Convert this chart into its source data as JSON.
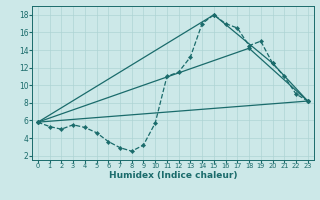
{
  "xlabel": "Humidex (Indice chaleur)",
  "bg_color": "#cce8e8",
  "line_color": "#1a6b6b",
  "xlim": [
    -0.5,
    23.5
  ],
  "ylim": [
    1.5,
    19
  ],
  "xticks": [
    0,
    1,
    2,
    3,
    4,
    5,
    6,
    7,
    8,
    9,
    10,
    11,
    12,
    13,
    14,
    15,
    16,
    17,
    18,
    19,
    20,
    21,
    22,
    23
  ],
  "yticks": [
    2,
    4,
    6,
    8,
    10,
    12,
    14,
    16,
    18
  ],
  "curve_dashed": {
    "x": [
      0,
      1,
      2,
      3,
      4,
      5,
      6,
      7,
      8,
      9,
      10,
      11,
      12,
      13,
      14,
      15,
      16,
      17,
      18,
      19,
      20,
      21,
      22,
      23
    ],
    "y": [
      5.8,
      5.3,
      5.0,
      5.5,
      5.2,
      4.6,
      3.6,
      2.9,
      2.5,
      3.2,
      5.7,
      11.0,
      11.5,
      13.2,
      17.0,
      18.0,
      17.0,
      16.5,
      14.5,
      15.0,
      12.5,
      11.0,
      9.0,
      8.2
    ]
  },
  "line1": {
    "x": [
      0,
      15,
      20,
      23
    ],
    "y": [
      5.8,
      18.0,
      12.5,
      8.2
    ]
  },
  "line2": {
    "x": [
      0,
      18,
      23
    ],
    "y": [
      5.8,
      14.2,
      8.2
    ]
  },
  "line3": {
    "x": [
      0,
      23
    ],
    "y": [
      5.8,
      8.2
    ]
  }
}
